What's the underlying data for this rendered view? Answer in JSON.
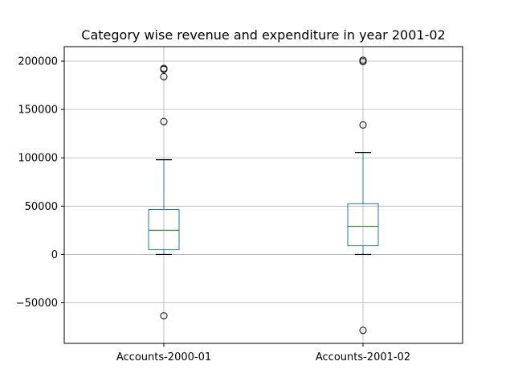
{
  "chart_data": {
    "type": "box",
    "title": "Category wise revenue and expenditure in year 2001-02",
    "xlabel": "",
    "ylabel": "",
    "ylim": [
      -92000,
      215000
    ],
    "yticks": [
      -50000,
      0,
      50000,
      100000,
      150000,
      200000
    ],
    "ytick_labels": [
      "−50000",
      "0",
      "50000",
      "100000",
      "150000",
      "200000"
    ],
    "grid": true,
    "categories": [
      "Accounts-2000-01",
      "Accounts-2001-02"
    ],
    "boxes": [
      {
        "whisker_low": 0,
        "q1": 5000,
        "median": 25000,
        "q3": 46500,
        "whisker_high": 98000,
        "outliers": [
          192500,
          191500,
          184000,
          137500,
          -63500
        ]
      },
      {
        "whisker_low": 0,
        "q1": 9000,
        "median": 29000,
        "q3": 52500,
        "whisker_high": 105500,
        "outliers": [
          201000,
          199500,
          134000,
          -78500
        ]
      }
    ],
    "colors": {
      "box": "#1f77b4",
      "median": "#2ca02c",
      "whisker_cap": "#000000",
      "grid": "#b0b0b0",
      "axes": "#000000"
    }
  }
}
